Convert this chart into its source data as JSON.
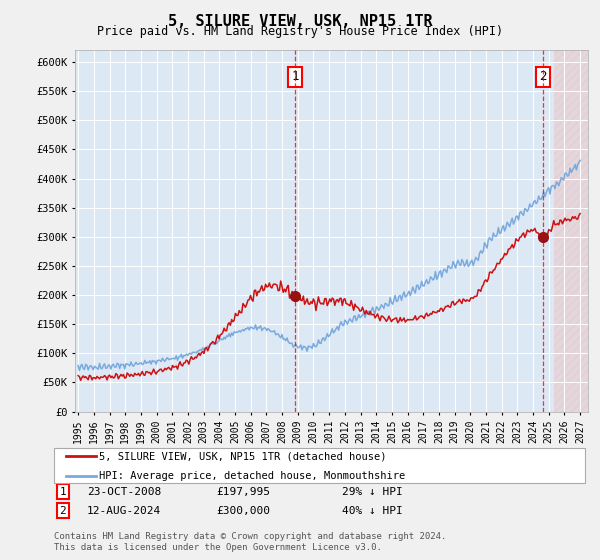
{
  "title": "5, SILURE VIEW, USK, NP15 1TR",
  "subtitle": "Price paid vs. HM Land Registry's House Price Index (HPI)",
  "hpi_color": "#7aaadd",
  "sale_color": "#cc1111",
  "dot_color": "#991111",
  "background_color": "#dde8f5",
  "grid_color": "#ffffff",
  "fig_bg": "#f0f0f0",
  "ylim": [
    0,
    620000
  ],
  "yticks": [
    0,
    50000,
    100000,
    150000,
    200000,
    250000,
    300000,
    350000,
    400000,
    450000,
    500000,
    550000,
    600000
  ],
  "xlim_start": 1994.8,
  "xlim_end": 2027.5,
  "xtick_years": [
    1995,
    1996,
    1997,
    1998,
    1999,
    2000,
    2001,
    2002,
    2003,
    2004,
    2005,
    2006,
    2007,
    2008,
    2009,
    2010,
    2011,
    2012,
    2013,
    2014,
    2015,
    2016,
    2017,
    2018,
    2019,
    2020,
    2021,
    2022,
    2023,
    2024,
    2025,
    2026,
    2027
  ],
  "sale1_x": 2008.81,
  "sale1_y": 197995,
  "sale1_label": "1",
  "sale2_x": 2024.62,
  "sale2_y": 300000,
  "sale2_label": "2",
  "annotation1_date": "23-OCT-2008",
  "annotation1_price": "£197,995",
  "annotation1_hpi": "29% ↓ HPI",
  "annotation2_date": "12-AUG-2024",
  "annotation2_price": "£300,000",
  "annotation2_hpi": "40% ↓ HPI",
  "legend_line1": "5, SILURE VIEW, USK, NP15 1TR (detached house)",
  "legend_line2": "HPI: Average price, detached house, Monmouthshire",
  "footer": "Contains HM Land Registry data © Crown copyright and database right 2024.\nThis data is licensed under the Open Government Licence v3.0.",
  "hatch_start": 2025.33
}
